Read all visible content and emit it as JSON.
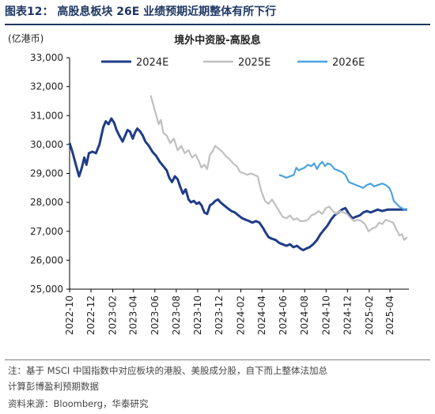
{
  "figure_title": "图表12：  高股息板块 26E 业绩预期近期整体有所下行",
  "footnote_line1": "注：基于 MSCI 中国指数中对应板块的港股、美股成分股，自下而上整体法加总",
  "footnote_line2": "计算彭博盈利预期数据",
  "source": "资料来源：Bloomberg，华泰研究",
  "chart_data": {
    "type": "line",
    "title": "境外中资股-高股息",
    "ylabel": "(亿港币)",
    "xlabel": "",
    "ylim": [
      25000,
      33000
    ],
    "yticks": [
      25000,
      26000,
      27000,
      28000,
      29000,
      30000,
      31000,
      32000,
      33000
    ],
    "ytick_labels": [
      "25,000",
      "26,000",
      "27,000",
      "28,000",
      "29,000",
      "30,000",
      "31,000",
      "32,000",
      "33,000"
    ],
    "xlim": [
      "2022-10",
      "2025-05"
    ],
    "xticks": [
      "2022-10",
      "2022-12",
      "2023-02",
      "2023-04",
      "2023-06",
      "2023-08",
      "2023-10",
      "2023-12",
      "2024-02",
      "2024-04",
      "2024-06",
      "2024-08",
      "2024-10",
      "2024-12",
      "2025-02",
      "2025-04"
    ],
    "grid": false,
    "legend_position": "top",
    "series": [
      {
        "name": "2024E",
        "color": "#1f3c88",
        "points": [
          [
            "2022-10-01",
            30050
          ],
          [
            "2022-10-10",
            29700
          ],
          [
            "2022-10-20",
            29250
          ],
          [
            "2022-10-28",
            28900
          ],
          [
            "2022-11-05",
            29200
          ],
          [
            "2022-11-12",
            29550
          ],
          [
            "2022-11-18",
            29300
          ],
          [
            "2022-11-25",
            29700
          ],
          [
            "2022-12-05",
            29750
          ],
          [
            "2022-12-15",
            29700
          ],
          [
            "2022-12-25",
            30000
          ],
          [
            "2023-01-05",
            30600
          ],
          [
            "2023-01-12",
            30800
          ],
          [
            "2023-01-20",
            30700
          ],
          [
            "2023-01-28",
            30900
          ],
          [
            "2023-02-05",
            30750
          ],
          [
            "2023-02-12",
            30500
          ],
          [
            "2023-02-20",
            30300
          ],
          [
            "2023-03-01",
            30100
          ],
          [
            "2023-03-08",
            30300
          ],
          [
            "2023-03-15",
            30500
          ],
          [
            "2023-03-22",
            30450
          ],
          [
            "2023-03-30",
            30200
          ],
          [
            "2023-04-05",
            30400
          ],
          [
            "2023-04-12",
            30550
          ],
          [
            "2023-04-20",
            30450
          ],
          [
            "2023-04-28",
            30300
          ],
          [
            "2023-05-05",
            30100
          ],
          [
            "2023-05-15",
            29950
          ],
          [
            "2023-05-25",
            29750
          ],
          [
            "2023-06-05",
            29600
          ],
          [
            "2023-06-15",
            29400
          ],
          [
            "2023-06-25",
            29250
          ],
          [
            "2023-07-05",
            29100
          ],
          [
            "2023-07-12",
            28850
          ],
          [
            "2023-07-20",
            28700
          ],
          [
            "2023-07-28",
            28900
          ],
          [
            "2023-08-05",
            28800
          ],
          [
            "2023-08-12",
            28550
          ],
          [
            "2023-08-20",
            28300
          ],
          [
            "2023-08-28",
            28450
          ],
          [
            "2023-09-05",
            28100
          ],
          [
            "2023-09-12",
            28000
          ],
          [
            "2023-09-20",
            28050
          ],
          [
            "2023-09-28",
            27950
          ],
          [
            "2023-10-05",
            28000
          ],
          [
            "2023-10-12",
            27900
          ],
          [
            "2023-10-20",
            27650
          ],
          [
            "2023-10-28",
            27600
          ],
          [
            "2023-11-05",
            27900
          ],
          [
            "2023-11-12",
            27950
          ],
          [
            "2023-11-20",
            28050
          ],
          [
            "2023-11-28",
            28100
          ],
          [
            "2023-12-05",
            28000
          ],
          [
            "2023-12-15",
            27900
          ],
          [
            "2023-12-25",
            27800
          ],
          [
            "2024-01-05",
            27700
          ],
          [
            "2024-01-15",
            27650
          ],
          [
            "2024-01-25",
            27550
          ],
          [
            "2024-02-05",
            27450
          ],
          [
            "2024-02-15",
            27400
          ],
          [
            "2024-02-25",
            27350
          ],
          [
            "2024-03-05",
            27300
          ],
          [
            "2024-03-15",
            27350
          ],
          [
            "2024-03-25",
            27300
          ],
          [
            "2024-04-05",
            27100
          ],
          [
            "2024-04-12",
            26950
          ],
          [
            "2024-04-20",
            26800
          ],
          [
            "2024-04-28",
            26750
          ],
          [
            "2024-05-10",
            26700
          ],
          [
            "2024-05-20",
            26600
          ],
          [
            "2024-05-30",
            26550
          ],
          [
            "2024-06-10",
            26500
          ],
          [
            "2024-06-20",
            26550
          ],
          [
            "2024-06-30",
            26450
          ],
          [
            "2024-07-10",
            26500
          ],
          [
            "2024-07-20",
            26400
          ],
          [
            "2024-07-28",
            26350
          ],
          [
            "2024-08-05",
            26400
          ],
          [
            "2024-08-15",
            26450
          ],
          [
            "2024-08-25",
            26550
          ],
          [
            "2024-09-05",
            26700
          ],
          [
            "2024-09-15",
            26900
          ],
          [
            "2024-09-25",
            27050
          ],
          [
            "2024-10-05",
            27200
          ],
          [
            "2024-10-15",
            27400
          ],
          [
            "2024-10-25",
            27550
          ],
          [
            "2024-11-05",
            27650
          ],
          [
            "2024-11-15",
            27750
          ],
          [
            "2024-11-25",
            27800
          ],
          [
            "2024-12-05",
            27600
          ],
          [
            "2024-12-15",
            27450
          ],
          [
            "2024-12-25",
            27500
          ],
          [
            "2025-01-05",
            27550
          ],
          [
            "2025-01-15",
            27650
          ],
          [
            "2025-01-25",
            27700
          ],
          [
            "2025-02-05",
            27650
          ],
          [
            "2025-02-15",
            27700
          ],
          [
            "2025-02-25",
            27750
          ],
          [
            "2025-03-10",
            27700
          ],
          [
            "2025-03-25",
            27750
          ],
          [
            "2025-04-10",
            27750
          ],
          [
            "2025-04-25",
            27750
          ],
          [
            "2025-05-10",
            27750
          ],
          [
            "2025-05-20",
            27750
          ]
        ]
      },
      {
        "name": "2025E",
        "color": "#bfbfbf",
        "points": [
          [
            "2023-05-20",
            31700
          ],
          [
            "2023-05-28",
            31350
          ],
          [
            "2023-06-05",
            31000
          ],
          [
            "2023-06-12",
            30700
          ],
          [
            "2023-06-18",
            30850
          ],
          [
            "2023-06-25",
            30400
          ],
          [
            "2023-07-05",
            30300
          ],
          [
            "2023-07-15",
            30050
          ],
          [
            "2023-07-25",
            30200
          ],
          [
            "2023-08-05",
            29800
          ],
          [
            "2023-08-15",
            29950
          ],
          [
            "2023-08-25",
            29700
          ],
          [
            "2023-09-05",
            29800
          ],
          [
            "2023-09-15",
            29550
          ],
          [
            "2023-09-25",
            29650
          ],
          [
            "2023-10-05",
            29400
          ],
          [
            "2023-10-12",
            29200
          ],
          [
            "2023-10-20",
            29300
          ],
          [
            "2023-10-28",
            29150
          ],
          [
            "2023-11-05",
            29650
          ],
          [
            "2023-11-12",
            29750
          ],
          [
            "2023-11-20",
            29950
          ],
          [
            "2023-11-30",
            29850
          ],
          [
            "2023-12-10",
            29750
          ],
          [
            "2023-12-20",
            29600
          ],
          [
            "2023-12-30",
            29500
          ],
          [
            "2024-01-10",
            29350
          ],
          [
            "2024-01-20",
            29250
          ],
          [
            "2024-01-30",
            29050
          ],
          [
            "2024-02-10",
            29000
          ],
          [
            "2024-02-20",
            28950
          ],
          [
            "2024-03-01",
            29000
          ],
          [
            "2024-03-10",
            28950
          ],
          [
            "2024-03-20",
            28900
          ],
          [
            "2024-03-30",
            28400
          ],
          [
            "2024-04-10",
            28050
          ],
          [
            "2024-04-20",
            27950
          ],
          [
            "2024-04-30",
            28100
          ],
          [
            "2024-05-10",
            27900
          ],
          [
            "2024-05-20",
            27700
          ],
          [
            "2024-05-30",
            27500
          ],
          [
            "2024-06-10",
            27450
          ],
          [
            "2024-06-20",
            27550
          ],
          [
            "2024-06-30",
            27400
          ],
          [
            "2024-07-10",
            27450
          ],
          [
            "2024-07-20",
            27350
          ],
          [
            "2024-07-30",
            27350
          ],
          [
            "2024-08-10",
            27400
          ],
          [
            "2024-08-20",
            27550
          ],
          [
            "2024-08-30",
            27600
          ],
          [
            "2024-09-10",
            27700
          ],
          [
            "2024-09-20",
            27600
          ],
          [
            "2024-09-30",
            27800
          ],
          [
            "2024-10-10",
            27850
          ],
          [
            "2024-10-20",
            27700
          ],
          [
            "2024-10-30",
            27600
          ],
          [
            "2024-11-10",
            27700
          ],
          [
            "2024-11-20",
            27650
          ],
          [
            "2024-11-30",
            27600
          ],
          [
            "2024-12-10",
            27450
          ],
          [
            "2024-12-20",
            27350
          ],
          [
            "2024-12-30",
            27400
          ],
          [
            "2025-01-10",
            27350
          ],
          [
            "2025-01-20",
            27250
          ],
          [
            "2025-01-30",
            27000
          ],
          [
            "2025-02-10",
            27100
          ],
          [
            "2025-02-20",
            27150
          ],
          [
            "2025-03-01",
            27300
          ],
          [
            "2025-03-10",
            27250
          ],
          [
            "2025-03-20",
            27400
          ],
          [
            "2025-03-30",
            27350
          ],
          [
            "2025-04-10",
            27300
          ],
          [
            "2025-04-20",
            27050
          ],
          [
            "2025-04-28",
            26850
          ],
          [
            "2025-05-05",
            26900
          ],
          [
            "2025-05-12",
            26700
          ],
          [
            "2025-05-20",
            26800
          ]
        ]
      },
      {
        "name": "2026E",
        "color": "#4aa3df",
        "points": [
          [
            "2024-05-20",
            28950
          ],
          [
            "2024-06-01",
            28900
          ],
          [
            "2024-06-10",
            28850
          ],
          [
            "2024-06-20",
            28900
          ],
          [
            "2024-07-01",
            28950
          ],
          [
            "2024-07-08",
            29200
          ],
          [
            "2024-07-15",
            29100
          ],
          [
            "2024-07-22",
            29150
          ],
          [
            "2024-08-01",
            29200
          ],
          [
            "2024-08-10",
            29300
          ],
          [
            "2024-08-20",
            29250
          ],
          [
            "2024-08-28",
            29350
          ],
          [
            "2024-09-05",
            29150
          ],
          [
            "2024-09-12",
            29300
          ],
          [
            "2024-09-20",
            29400
          ],
          [
            "2024-09-28",
            29250
          ],
          [
            "2024-10-05",
            29350
          ],
          [
            "2024-10-15",
            29300
          ],
          [
            "2024-10-25",
            29150
          ],
          [
            "2024-11-05",
            29100
          ],
          [
            "2024-11-15",
            29050
          ],
          [
            "2024-11-25",
            28950
          ],
          [
            "2024-12-05",
            28700
          ],
          [
            "2024-12-15",
            28650
          ],
          [
            "2024-12-25",
            28600
          ],
          [
            "2025-01-05",
            28550
          ],
          [
            "2025-01-15",
            28500
          ],
          [
            "2025-01-25",
            28600
          ],
          [
            "2025-02-05",
            28650
          ],
          [
            "2025-02-15",
            28550
          ],
          [
            "2025-02-25",
            28600
          ],
          [
            "2025-03-10",
            28650
          ],
          [
            "2025-03-20",
            28600
          ],
          [
            "2025-03-30",
            28500
          ],
          [
            "2025-04-05",
            28350
          ],
          [
            "2025-04-12",
            28050
          ],
          [
            "2025-04-20",
            27950
          ],
          [
            "2025-04-28",
            27850
          ],
          [
            "2025-05-05",
            27800
          ],
          [
            "2025-05-12",
            27750
          ],
          [
            "2025-05-20",
            27750
          ]
        ]
      }
    ]
  }
}
